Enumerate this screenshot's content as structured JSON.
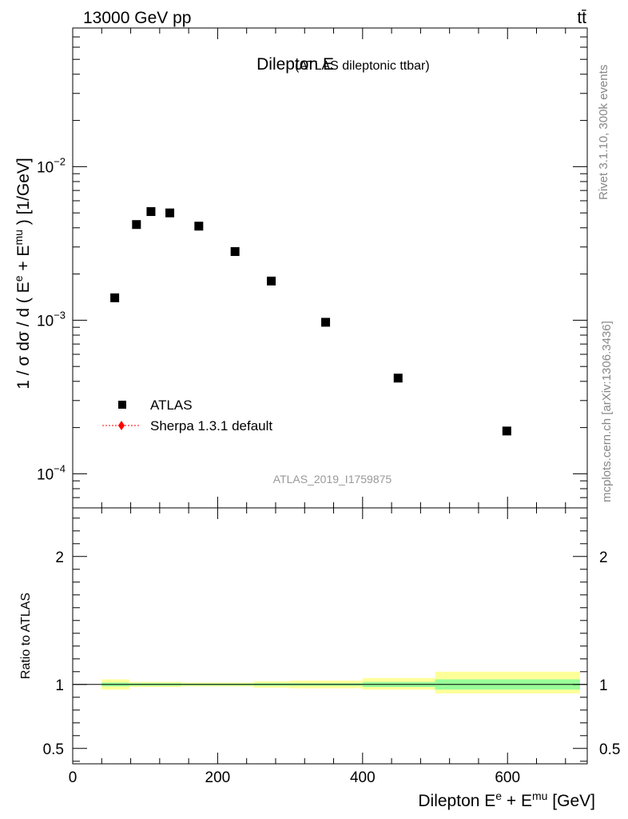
{
  "header": {
    "left": "13000 GeV pp",
    "right": "tt̄"
  },
  "side": {
    "rivet": "Rivet 3.1.10,  300k events",
    "mcplots": "mcplots.cern.ch [arXiv:1306.3436]"
  },
  "chart_data": [
    {
      "type": "scatter",
      "title": "Dilepton E",
      "subtitle": "(ATLAS dileptonic ttbar)",
      "analysis_id": "ATLAS_2019_I1759875",
      "ylabel": {
        "pre": "1 / σ  dσ / d ( E",
        "sup1": "e",
        "mid": " + E",
        "sup2": "mu",
        "post": " ) [1/GeV]"
      },
      "yscale": "log",
      "ylim": [
        6e-05,
        0.08
      ],
      "xlim": [
        0,
        710
      ],
      "x_ticks": [
        0,
        200,
        400,
        600
      ],
      "y_ticks": [
        {
          "value": 0.01,
          "base": "10",
          "exp": "−2"
        },
        {
          "value": 0.001,
          "base": "10",
          "exp": "−3"
        },
        {
          "value": 0.0001,
          "base": "10",
          "exp": "−4"
        }
      ],
      "legend": {
        "placement": "lower-left",
        "entries": [
          {
            "label": "ATLAS",
            "marker": "square",
            "color": "#000000"
          },
          {
            "label": "Sherpa 1.3.1 default",
            "marker": "diamond-dotted-line",
            "color": "#ff0000"
          }
        ]
      },
      "series": [
        {
          "name": "ATLAS",
          "color": "#000000",
          "points": [
            {
              "x": 58,
              "y": 0.0014
            },
            {
              "x": 88,
              "y": 0.0042
            },
            {
              "x": 108,
              "y": 0.0051
            },
            {
              "x": 134,
              "y": 0.005
            },
            {
              "x": 174,
              "y": 0.0041
            },
            {
              "x": 224,
              "y": 0.0028
            },
            {
              "x": 274,
              "y": 0.0018
            },
            {
              "x": 349,
              "y": 0.00097
            },
            {
              "x": 449,
              "y": 0.00042
            },
            {
              "x": 599,
              "y": 0.00019
            }
          ]
        }
      ]
    },
    {
      "type": "area",
      "ylabel": "Ratio to ATLAS",
      "ylim": [
        0.38,
        2.38
      ],
      "y_ticks": [
        {
          "value": 0.5,
          "label": "0.5"
        },
        {
          "value": 1,
          "label": "1"
        },
        {
          "value": 2,
          "label": "2"
        }
      ],
      "xlabel": {
        "pre": "Dilepton E",
        "sup1": "e",
        "mid": " + E",
        "sup2": "mu",
        "post": " [GeV]"
      },
      "reference_line": 1,
      "bands": [
        {
          "x0": 40,
          "x1": 78,
          "inner": [
            0.985,
            1.015
          ],
          "outer": [
            0.96,
            1.04
          ]
        },
        {
          "x0": 78,
          "x1": 98,
          "inner": [
            0.99,
            1.01
          ],
          "outer": [
            0.98,
            1.02
          ]
        },
        {
          "x0": 98,
          "x1": 118,
          "inner": [
            0.99,
            1.01
          ],
          "outer": [
            0.98,
            1.02
          ]
        },
        {
          "x0": 118,
          "x1": 150,
          "inner": [
            0.99,
            1.01
          ],
          "outer": [
            0.98,
            1.02
          ]
        },
        {
          "x0": 150,
          "x1": 200,
          "inner": [
            0.993,
            1.007
          ],
          "outer": [
            0.985,
            1.015
          ]
        },
        {
          "x0": 200,
          "x1": 250,
          "inner": [
            0.993,
            1.007
          ],
          "outer": [
            0.985,
            1.015
          ]
        },
        {
          "x0": 250,
          "x1": 300,
          "inner": [
            0.99,
            1.01
          ],
          "outer": [
            0.975,
            1.025
          ]
        },
        {
          "x0": 300,
          "x1": 400,
          "inner": [
            0.99,
            1.01
          ],
          "outer": [
            0.97,
            1.03
          ]
        },
        {
          "x0": 400,
          "x1": 500,
          "inner": [
            0.98,
            1.02
          ],
          "outer": [
            0.96,
            1.05
          ]
        },
        {
          "x0": 500,
          "x1": 700,
          "inner": [
            0.96,
            1.04
          ],
          "outer": [
            0.93,
            1.1
          ]
        }
      ],
      "band_colors": {
        "inner": "#99ff99",
        "outer": "#ffff99"
      }
    }
  ]
}
